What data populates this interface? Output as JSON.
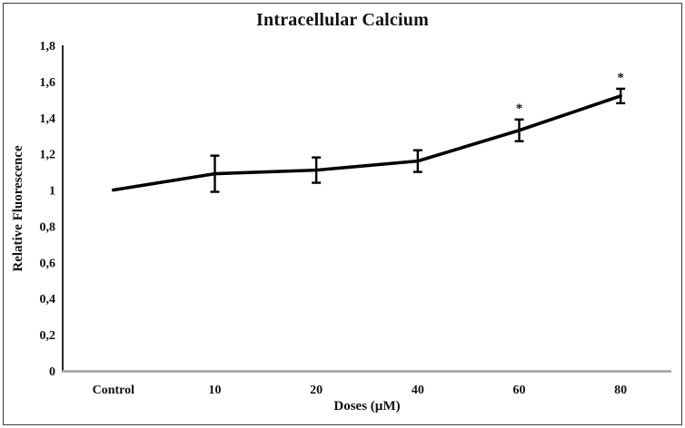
{
  "chart_data": {
    "type": "line",
    "title": "Intracellular Calcium",
    "xlabel": "Doses (µM)",
    "ylabel": "Relative Fluorescence",
    "categories": [
      "Control",
      "10",
      "20",
      "40",
      "60",
      "80"
    ],
    "series": [
      {
        "name": "Relative Fluorescence",
        "values": [
          1.0,
          1.09,
          1.11,
          1.16,
          1.33,
          1.52
        ],
        "errors": [
          0,
          0.1,
          0.07,
          0.06,
          0.06,
          0.04
        ],
        "significance": [
          "",
          "",
          "",
          "",
          "*",
          "*"
        ]
      }
    ],
    "ylim": [
      0,
      1.8
    ],
    "y_tick_values": [
      0,
      0.2,
      0.4,
      0.6,
      0.8,
      1.0,
      1.2,
      1.4,
      1.6,
      1.8
    ],
    "y_tick_labels": [
      "0",
      "0,2",
      "0,4",
      "0,6",
      "0,8",
      "1",
      "1,2",
      "1,4",
      "1,6",
      "1,8"
    ],
    "grid": false,
    "legend": "none",
    "line_color": "#000000",
    "y_axis_color": "#262626",
    "x_axis_color": "#9e9e9e"
  }
}
